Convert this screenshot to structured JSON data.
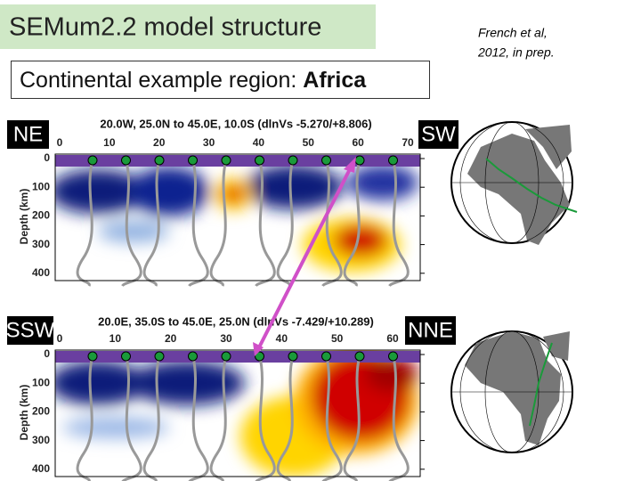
{
  "header": {
    "title": "SEMum2.2 model structure",
    "subtitle": "Continental example region:",
    "subtitle_bold": "Africa",
    "citation": [
      "French et al,",
      "2012, in prep."
    ]
  },
  "panels": [
    {
      "left_label": "NE",
      "right_label": "SW",
      "caption": "20.0W, 25.0N to 45.0E, 10.0S (dlnVs -5.270/+8.806)",
      "xticks": [
        "0",
        "10",
        "20",
        "30",
        "40",
        "50",
        "60",
        "70"
      ],
      "yticks": [
        "0",
        "100",
        "200",
        "300",
        "400"
      ],
      "ylabel": "Depth (km)"
    },
    {
      "left_label": "SSW",
      "right_label": "NNE",
      "caption": "20.0E, 35.0S to 45.0E, 25.0N (dlnVs -7.429/+10.289)",
      "xticks": [
        "0",
        "10",
        "20",
        "30",
        "40",
        "50",
        "60"
      ],
      "yticks": [
        "0",
        "100",
        "200",
        "300",
        "400"
      ],
      "ylabel": "Depth (km)"
    }
  ]
}
